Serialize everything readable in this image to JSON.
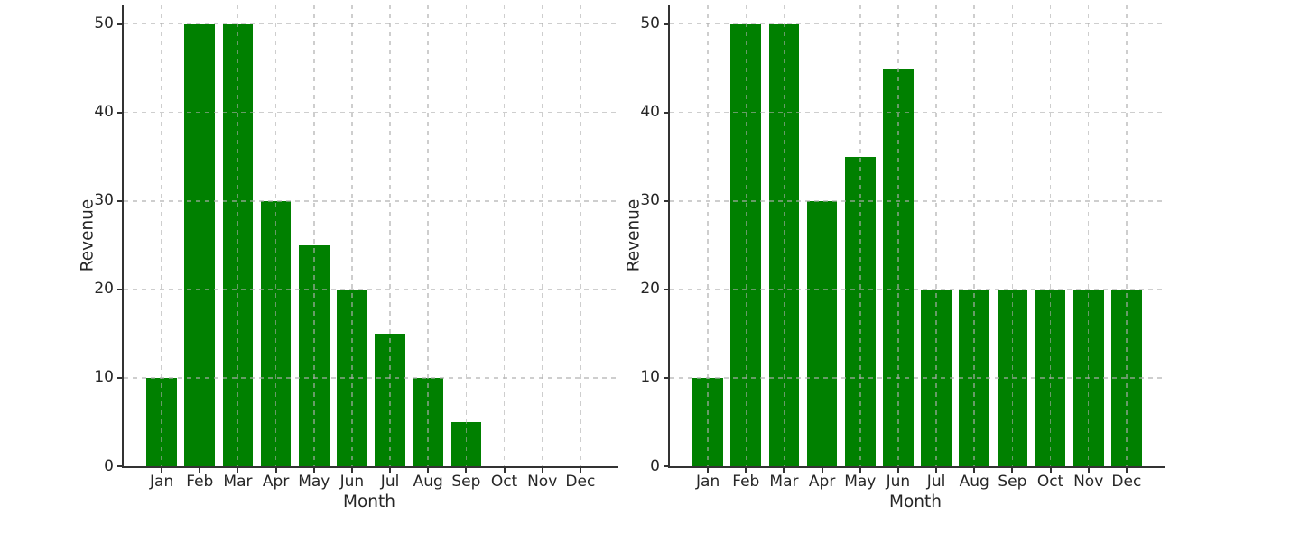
{
  "figure": {
    "background": "#ffffff",
    "text_color": "#262626",
    "spine_color": "#333333",
    "grid_color": "rgba(173,173,173,0.6)",
    "grid_style": "dashed, both axes, drawn over bars",
    "legend": "none"
  },
  "chart_data": [
    {
      "type": "bar",
      "title": "",
      "xlabel": "Month",
      "ylabel": "Revenue",
      "categories": [
        "Jan",
        "Feb",
        "Mar",
        "Apr",
        "May",
        "Jun",
        "Jul",
        "Aug",
        "Sep",
        "Oct",
        "Nov",
        "Dec"
      ],
      "values": [
        10,
        50,
        50,
        30,
        25,
        20,
        15,
        10,
        5,
        0,
        0,
        0
      ],
      "bar_color": "#008000",
      "yticks": [
        0,
        10,
        20,
        30,
        40,
        50
      ],
      "ylim": [
        0,
        52.2
      ],
      "x_slots": 13,
      "bar_width_units": 0.8,
      "grid": true
    },
    {
      "type": "bar",
      "title": "",
      "xlabel": "Month",
      "ylabel": "Revenue",
      "categories": [
        "Jan",
        "Feb",
        "Mar",
        "Apr",
        "May",
        "Jun",
        "Jul",
        "Aug",
        "Sep",
        "Oct",
        "Nov",
        "Dec"
      ],
      "values": [
        10,
        50,
        50,
        30,
        35,
        45,
        20,
        20,
        20,
        20,
        20,
        20
      ],
      "bar_color": "#008000",
      "yticks": [
        0,
        10,
        20,
        30,
        40,
        50
      ],
      "ylim": [
        0,
        52.2
      ],
      "x_slots": 13,
      "bar_width_units": 0.8,
      "grid": true
    }
  ]
}
